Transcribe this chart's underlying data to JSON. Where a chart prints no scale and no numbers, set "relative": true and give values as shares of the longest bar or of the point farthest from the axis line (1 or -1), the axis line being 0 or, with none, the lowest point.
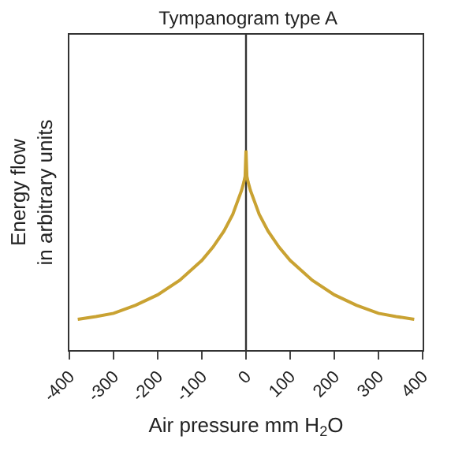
{
  "chart_data": {
    "type": "line",
    "title": "Tympanogram type A",
    "xlabel": "Air pressure mm H$_{2}$O",
    "ylabel": "Energy flow\nin arbitrary units",
    "relative": true,
    "x": [
      -381,
      -340,
      -300,
      -250,
      -200,
      -150,
      -100,
      -75,
      -50,
      -30,
      -20,
      -10,
      -5,
      -2,
      0,
      2,
      5,
      10,
      20,
      30,
      50,
      75,
      100,
      150,
      200,
      250,
      300,
      340,
      381
    ],
    "series": [
      {
        "color": "#c9a232",
        "values": [
          0.154,
          0.168,
          0.184,
          0.225,
          0.277,
          0.35,
          0.449,
          0.515,
          0.596,
          0.68,
          0.74,
          0.8,
          0.84,
          0.87,
          1,
          0.87,
          0.84,
          0.8,
          0.74,
          0.68,
          0.596,
          0.515,
          0.449,
          0.35,
          0.277,
          0.225,
          0.184,
          0.168,
          0.154
        ]
      }
    ],
    "xlim": [
      -400,
      400
    ],
    "xticks": [
      -400,
      -300,
      -200,
      -100,
      0,
      100,
      200,
      300,
      400
    ],
    "ref_lines": [
      {
        "axis": "x",
        "value": 0,
        "color": "#333333"
      }
    ],
    "grid": false
  }
}
